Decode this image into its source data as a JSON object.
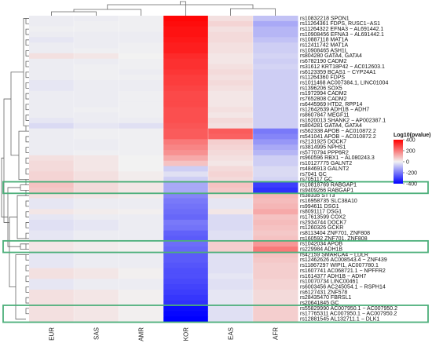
{
  "chart_data": {
    "type": "heatmap",
    "columns": [
      "EUR",
      "SAS",
      "AMR",
      "KOR",
      "EAS",
      "AFR"
    ],
    "rows": [
      {
        "label": "rs10832218 SPON1",
        "values": [
          -10,
          -10,
          -5,
          390,
          30,
          -80
        ]
      },
      {
        "label": "rs11264361 FDPS, RUSC1−AS1",
        "values": [
          -10,
          -5,
          -5,
          380,
          50,
          -120
        ]
      },
      {
        "label": "rs11264322 EFNA3 − AL691442.1",
        "values": [
          -5,
          -5,
          -5,
          370,
          30,
          -100
        ]
      },
      {
        "label": "rs10908456 EFNA3 − AL691442.1",
        "values": [
          -10,
          -10,
          -10,
          370,
          40,
          -100
        ]
      },
      {
        "label": "rs10887118 MAT1A",
        "values": [
          -20,
          -10,
          -10,
          360,
          40,
          -80
        ]
      },
      {
        "label": "rs12411742 MAT1A",
        "values": [
          -10,
          -10,
          -5,
          350,
          30,
          -60
        ]
      },
      {
        "label": "rs10908465 ASH1L",
        "values": [
          -10,
          -5,
          -5,
          350,
          30,
          -60
        ]
      },
      {
        "label": "rs804280 GATA4, GATA4",
        "values": [
          30,
          20,
          0,
          330,
          20,
          -50
        ]
      },
      {
        "label": "rs6782190 CADM2",
        "values": [
          -10,
          -10,
          -5,
          320,
          20,
          -60
        ]
      },
      {
        "label": "rs31612 KRT18P42 − AC012603.1",
        "values": [
          -10,
          -5,
          -5,
          320,
          30,
          -50
        ]
      },
      {
        "label": "rs6123359 BCAS1 − CYP24A1",
        "values": [
          -10,
          -5,
          -10,
          310,
          40,
          -60
        ]
      },
      {
        "label": "rs11264360 FDPS",
        "values": [
          -10,
          -5,
          -5,
          300,
          30,
          -60
        ]
      },
      {
        "label": "rs1011468 AC007384.1, LINC01004",
        "values": [
          -20,
          -10,
          -10,
          300,
          40,
          -60
        ]
      },
      {
        "label": "rs1396206 SOX5",
        "values": [
          -20,
          -10,
          -10,
          290,
          30,
          -60
        ]
      },
      {
        "label": "rs1972994 CADM2",
        "values": [
          -10,
          -10,
          -5,
          280,
          20,
          -60
        ]
      },
      {
        "label": "rs7652808 CADM2",
        "values": [
          -10,
          -10,
          -5,
          280,
          20,
          -60
        ]
      },
      {
        "label": "rs6445969 HTD2, RPP14",
        "values": [
          -10,
          -10,
          -5,
          280,
          20,
          -60
        ]
      },
      {
        "label": "rs12642639 ADH1B − ADH7",
        "values": [
          -10,
          -5,
          -5,
          270,
          30,
          -60
        ]
      },
      {
        "label": "rs8607847 MEGF11",
        "values": [
          -10,
          -10,
          -5,
          270,
          20,
          -60
        ]
      },
      {
        "label": "rs1620013 SHANK2 − AP002387.1",
        "values": [
          -20,
          -10,
          -10,
          270,
          40,
          -60
        ]
      },
      {
        "label": "rs804281 GATA4, GATA4",
        "values": [
          -40,
          -20,
          -30,
          260,
          30,
          -60
        ]
      },
      {
        "label": "rs562338 APOB − AC010872.2",
        "values": [
          -10,
          -5,
          -5,
          250,
          250,
          -200
        ]
      },
      {
        "label": "rs541041 APOB − AC010872.2",
        "values": [
          -10,
          -5,
          -5,
          250,
          240,
          -180
        ]
      },
      {
        "label": "rs2131925 DOCK7",
        "values": [
          -10,
          -10,
          -5,
          200,
          60,
          -150
        ]
      },
      {
        "label": "rs3814995 NPHS1",
        "values": [
          -10,
          -10,
          -5,
          180,
          50,
          -120
        ]
      },
      {
        "label": "rs5770794 PPP6R2",
        "values": [
          -10,
          -5,
          -5,
          160,
          40,
          -100
        ]
      },
      {
        "label": "rs960596 RBX1 − AL080243.3",
        "values": [
          30,
          20,
          0,
          120,
          30,
          -60
        ]
      },
      {
        "label": "rs10127775 GALNT2",
        "values": [
          40,
          20,
          0,
          80,
          20,
          -60
        ]
      },
      {
        "label": "rs4846913 GALNT2",
        "values": [
          40,
          20,
          0,
          -60,
          40,
          -40
        ]
      },
      {
        "label": "rs7041 GC",
        "values": [
          50,
          30,
          10,
          -30,
          50,
          -40
        ]
      },
      {
        "label": "rs705117 GC",
        "values": [
          50,
          30,
          10,
          -60,
          40,
          -50
        ]
      },
      {
        "label": "rs10818769 RABGAP1",
        "values": [
          80,
          40,
          20,
          -120,
          80,
          -300
        ]
      },
      {
        "label": "rs9409266 RABGAP1",
        "values": [
          70,
          40,
          20,
          -120,
          70,
          -320
        ]
      },
      {
        "label": "rs38335 STT3",
        "values": [
          30,
          20,
          10,
          -180,
          30,
          100
        ]
      },
      {
        "label": "rs16958735 SLC38A10",
        "values": [
          -20,
          -10,
          -10,
          -200,
          -20,
          90
        ]
      },
      {
        "label": "rs994611 DSG1",
        "values": [
          -20,
          -10,
          -10,
          -210,
          -20,
          100
        ]
      },
      {
        "label": "rs8091117 DSG1",
        "values": [
          20,
          10,
          5,
          -220,
          20,
          120
        ]
      },
      {
        "label": "rs17613599 COX2",
        "values": [
          -20,
          -10,
          -10,
          -230,
          -40,
          80
        ]
      },
      {
        "label": "rs2934744 DOCK7",
        "values": [
          -30,
          -20,
          -10,
          -200,
          -40,
          90
        ]
      },
      {
        "label": "rs1260326 GCKR",
        "values": [
          -30,
          -20,
          -10,
          -210,
          -40,
          80
        ]
      },
      {
        "label": "rs8113404 ZNF701, ZNF808",
        "values": [
          -20,
          -10,
          -10,
          -240,
          -30,
          70
        ]
      },
      {
        "label": "rs160592 ZNF701, ZNF808",
        "values": [
          -20,
          -10,
          -10,
          -250,
          -30,
          80
        ]
      },
      {
        "label": "rs1042034 APOB",
        "values": [
          20,
          10,
          5,
          -220,
          60,
          150
        ]
      },
      {
        "label": "rs229984 ADH1B",
        "values": [
          20,
          10,
          5,
          -230,
          60,
          200
        ]
      },
      {
        "label": "rs42159 SMARCA4 − LDLR",
        "values": [
          -20,
          -10,
          -10,
          -250,
          -30,
          80
        ]
      },
      {
        "label": "rs12462626 AC008543.4 − ZNF439",
        "values": [
          -20,
          -10,
          -10,
          -250,
          -30,
          70
        ]
      },
      {
        "label": "rs11867297 WIPI1, AC007780.1",
        "values": [
          -20,
          -10,
          -10,
          -260,
          -30,
          60
        ]
      },
      {
        "label": "rs1607741 AC068721.1 − NPFFR2",
        "values": [
          30,
          20,
          5,
          -270,
          -30,
          60
        ]
      },
      {
        "label": "rs1614377 ADH1B − ADH7",
        "values": [
          30,
          20,
          5,
          -270,
          -20,
          60
        ]
      },
      {
        "label": "rs10070734 LINC00461",
        "values": [
          -20,
          -10,
          -10,
          -280,
          -30,
          50
        ]
      },
      {
        "label": "rs6003456 AC245054.1 − RSPH14",
        "values": [
          -20,
          -10,
          -10,
          -290,
          -30,
          50
        ]
      },
      {
        "label": "rs6127431 ZNF578",
        "values": [
          30,
          20,
          5,
          -300,
          -20,
          40
        ]
      },
      {
        "label": "rs28435470 FBRSL1",
        "values": [
          30,
          20,
          5,
          -310,
          -20,
          40
        ]
      },
      {
        "label": "rs20641845 GC",
        "values": [
          30,
          20,
          5,
          -320,
          -20,
          40
        ]
      },
      {
        "label": "rs55829990 AC007950.1 − AC007950.2",
        "values": [
          30,
          20,
          5,
          -380,
          -30,
          60
        ]
      },
      {
        "label": "rs17765311 AC007950.1 − AC007950.2",
        "values": [
          30,
          20,
          5,
          -390,
          -30,
          60
        ]
      },
      {
        "label": "rs12881545 AL132711.1 − DLK1",
        "values": [
          30,
          20,
          5,
          -400,
          -30,
          60
        ]
      }
    ],
    "highlighted_rows": [
      [
        "rs10818769 RABGAP1",
        "rs9409266 RABGAP1"
      ],
      [
        "rs1042034 APOB",
        "rs229984 ADH1B"
      ],
      [
        "rs55829990 AC007950.1 − AC007950.2",
        "rs17765311 AC007950.1 − AC007950.2",
        "rs12881545 AL132711.1 − DLK1"
      ]
    ],
    "legend": {
      "title": "Log10(pvalue)",
      "ticks": [
        400,
        200,
        0,
        -200,
        -400
      ],
      "position": "right"
    },
    "color_scale": {
      "min": -400,
      "mid": 0,
      "max": 400,
      "low_color": "#0000ff",
      "mid_color": "#f2f2f2",
      "high_color": "#ff0000"
    },
    "highlight_color": "#4caf7a",
    "dendrograms": [
      "top",
      "left"
    ]
  }
}
